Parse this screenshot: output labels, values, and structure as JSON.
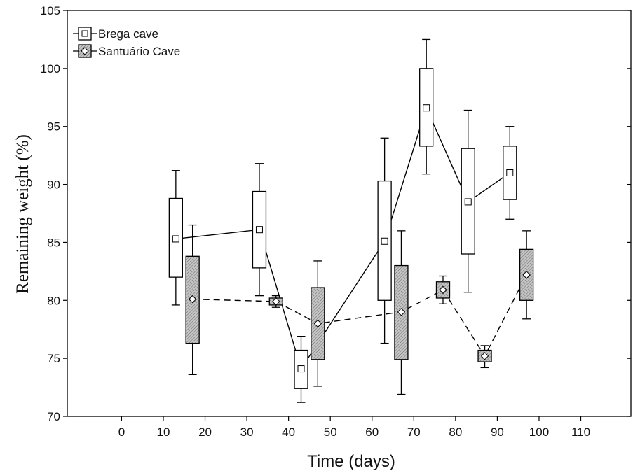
{
  "chart_data": {
    "type": "box",
    "xlabel": "Time (days)",
    "ylabel": "Remaining weight (%)",
    "xlim": [
      -13,
      122
    ],
    "ylim": [
      70,
      105
    ],
    "x_ticks": [
      0,
      10,
      20,
      30,
      40,
      50,
      60,
      70,
      80,
      90,
      100,
      110
    ],
    "y_ticks": [
      70,
      75,
      80,
      85,
      90,
      95,
      100,
      105
    ],
    "legend_position": "top-left",
    "series": [
      {
        "name": "Brega cave",
        "marker": "square",
        "fill": "#ffffff",
        "line_style": "solid",
        "points": [
          {
            "x": 13,
            "mean": 85.3,
            "q1": 82,
            "q3": 88.8,
            "min": 79.6,
            "max": 91.2
          },
          {
            "x": 33,
            "mean": 86.1,
            "q1": 82.8,
            "q3": 89.4,
            "min": 80.4,
            "max": 91.8
          },
          {
            "x": 43,
            "mean": 74.1,
            "q1": 72.4,
            "q3": 75.7,
            "min": 71.2,
            "max": 76.9
          },
          {
            "x": 63,
            "mean": 85.1,
            "q1": 80,
            "q3": 90.3,
            "min": 76.3,
            "max": 94
          },
          {
            "x": 73,
            "mean": 96.6,
            "q1": 93.3,
            "q3": 100,
            "min": 90.9,
            "max": 102.5
          },
          {
            "x": 83,
            "mean": 88.5,
            "q1": 84,
            "q3": 93.1,
            "min": 80.7,
            "max": 96.4
          },
          {
            "x": 93,
            "mean": 91,
            "q1": 88.7,
            "q3": 93.3,
            "min": 87,
            "max": 95
          }
        ]
      },
      {
        "name": "Santuário Cave",
        "marker": "diamond",
        "fill": "#bdbdbd",
        "line_style": "dashed",
        "points": [
          {
            "x": 17,
            "mean": 80.1,
            "q1": 76.3,
            "q3": 83.8,
            "min": 73.6,
            "max": 86.5
          },
          {
            "x": 37,
            "mean": 79.9,
            "q1": 79.6,
            "q3": 80.2,
            "min": 79.4,
            "max": 80.4
          },
          {
            "x": 47,
            "mean": 78,
            "q1": 74.9,
            "q3": 81.1,
            "min": 72.6,
            "max": 83.4
          },
          {
            "x": 67,
            "mean": 79,
            "q1": 74.9,
            "q3": 83,
            "min": 71.9,
            "max": 86
          },
          {
            "x": 77,
            "mean": 80.9,
            "q1": 80.2,
            "q3": 81.6,
            "min": 79.7,
            "max": 82.1
          },
          {
            "x": 87,
            "mean": 75.2,
            "q1": 74.7,
            "q3": 75.7,
            "min": 74.2,
            "max": 76.1
          },
          {
            "x": 97,
            "mean": 82.2,
            "q1": 80,
            "q3": 84.4,
            "min": 78.4,
            "max": 86
          }
        ]
      }
    ]
  }
}
